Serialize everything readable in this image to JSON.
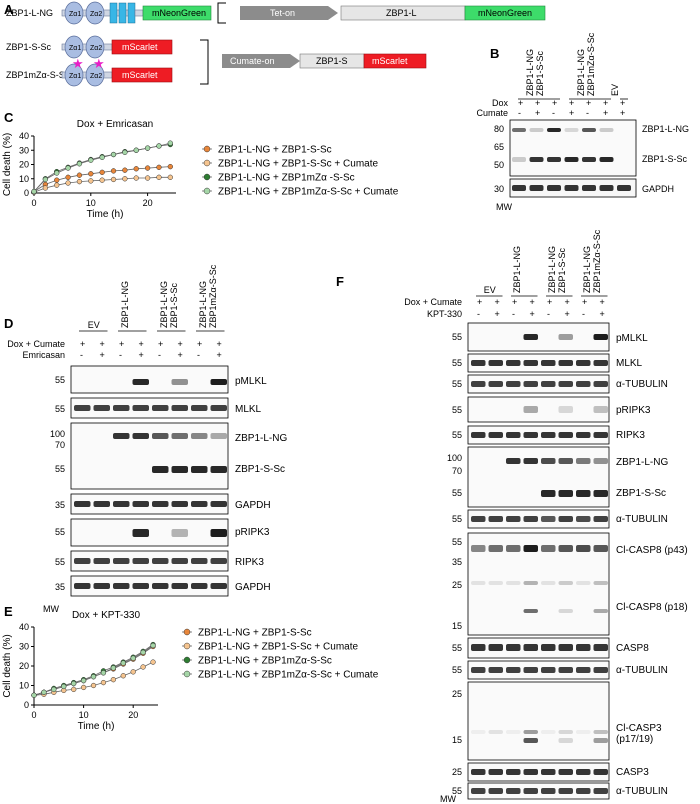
{
  "panels": {
    "A": "A",
    "B": "B",
    "C": "C",
    "D": "D",
    "E": "E",
    "F": "F"
  },
  "panelA": {
    "rows": [
      {
        "name": "ZBP1-L-NG",
        "domains": [
          "Zα1",
          "Zα2"
        ],
        "rhims": [
          "R\nH\n1",
          "R\nH\n2",
          "R\nH\n3"
        ],
        "tag": "mNeonGreen"
      },
      {
        "name": "ZBP1-S-Sc",
        "domains": [
          "Zα1",
          "Zα2"
        ],
        "tag": "mScarlet"
      },
      {
        "name": "ZBP1mZα-S-Sc",
        "domains": [
          "Zα1",
          "Zα2"
        ],
        "tag": "mScarlet"
      }
    ],
    "promoters": [
      "Tet-on",
      "Cumate-on"
    ],
    "construct_L": [
      "ZBP1-L",
      "mNeonGreen"
    ],
    "construct_S": [
      "ZBP1-S",
      "mScarlet"
    ]
  },
  "panelB": {
    "lane_groups": [
      "ZBP1-L-NG\nZBP1-S-Sc",
      "ZBP1-L-NG\nZBP1mZα-S-Sc",
      "EV"
    ],
    "treat_labels": [
      "Dox",
      "Cumate"
    ],
    "dox": [
      "+",
      "+",
      "+",
      "+",
      "+",
      "+",
      "+"
    ],
    "cumate": [
      "-",
      "+",
      "-",
      "+",
      "-",
      "+",
      "+"
    ],
    "mw": [
      "80",
      "65",
      "50",
      "30"
    ],
    "mw_label": "MW",
    "blots": [
      "ZBP1-L-NG",
      "ZBP1-S-Sc",
      "GAPDH"
    ]
  },
  "panelC": {
    "title": "Dox + Emricasan",
    "legend": [
      "ZBP1-L-NG + ZBP1-S-Sc",
      "ZBP1-L-NG + ZBP1-S-Sc + Cumate",
      "ZBP1-L-NG + ZBP1mZα -S-Sc",
      "ZBP1-L-NG + ZBP1mZα-S-Sc + Cumate"
    ]
  },
  "panelD": {
    "lane_groups": [
      "EV",
      "ZBP1-L-NG",
      "ZBP1-L-NG\nZBP1-S-Sc",
      "ZBP1-L-NG\nZBP1mZα-S-Sc"
    ],
    "treat_labels": [
      "Dox + Cumate",
      "Emricasan"
    ],
    "row1": [
      "+",
      "+",
      "+",
      "+",
      "+",
      "+",
      "+",
      "+"
    ],
    "row2": [
      "-",
      "+",
      "-",
      "+",
      "-",
      "+",
      "-",
      "+"
    ],
    "blots": [
      {
        "label": "pMLKL",
        "mw": [
          "55"
        ]
      },
      {
        "label": "MLKL",
        "mw": [
          "55"
        ]
      },
      {
        "label": "ZBP1-L-NG",
        "mw": [
          "100",
          "70"
        ]
      },
      {
        "label": "ZBP1-S-Sc",
        "mw": [
          "55"
        ]
      },
      {
        "label": "GAPDH",
        "mw": [
          "35"
        ]
      },
      {
        "label": "pRIPK3",
        "mw": [
          "55"
        ]
      },
      {
        "label": "RIPK3",
        "mw": [
          "55"
        ]
      },
      {
        "label": "GAPDH",
        "mw": [
          "35"
        ]
      }
    ],
    "mw_label": "MW"
  },
  "panelE": {
    "title": "Dox + KPT-330",
    "legend": [
      "ZBP1-L-NG + ZBP1-S-Sc",
      "ZBP1-L-NG + ZBP1-S-Sc + Cumate",
      "ZBP1-L-NG + ZBP1mZα-S-Sc",
      "ZBP1-L-NG + ZBP1mZα-S-Sc + Cumate"
    ]
  },
  "panelF": {
    "lane_groups": [
      "EV",
      "ZBP1-L-NG",
      "ZBP1-L-NG\nZBP1-S-Sc",
      "ZBP1-L-NG\nZBP1mZα-S-Sc"
    ],
    "treat_labels": [
      "Dox + Cumate",
      "KPT-330"
    ],
    "row1": [
      "+",
      "+",
      "+",
      "+",
      "+",
      "+",
      "+",
      "+"
    ],
    "row2": [
      "-",
      "+",
      "-",
      "+",
      "-",
      "+",
      "-",
      "+"
    ],
    "blots": [
      {
        "label": "pMLKL",
        "mw": [
          "55"
        ]
      },
      {
        "label": "MLKL",
        "mw": [
          "55"
        ]
      },
      {
        "label": "α-TUBULIN",
        "mw": [
          "55"
        ]
      },
      {
        "label": "pRIPK3",
        "mw": [
          "55"
        ]
      },
      {
        "label": "RIPK3",
        "mw": [
          "55"
        ]
      },
      {
        "label": "ZBP1-L-NG",
        "mw": [
          "100",
          "70"
        ]
      },
      {
        "label": "ZBP1-S-Sc",
        "mw": [
          "55"
        ]
      },
      {
        "label": "α-TUBULIN",
        "mw": [
          "55"
        ]
      },
      {
        "label": "Cl-CASP8 (p43)",
        "mw": [
          "55",
          "35",
          "25"
        ]
      },
      {
        "label": "Cl-CASP8 (p18)",
        "mw": [
          "15"
        ]
      },
      {
        "label": "CASP8",
        "mw": [
          "55"
        ]
      },
      {
        "label": "α-TUBULIN",
        "mw": [
          "55"
        ]
      },
      {
        "label": "Cl-CASP3\n(p17/19)",
        "mw": [
          "25",
          "15"
        ]
      },
      {
        "label": "CASP3",
        "mw": [
          "25"
        ]
      },
      {
        "label": "α-TUBULIN",
        "mw": [
          "55"
        ]
      }
    ],
    "mw_label": "MW"
  },
  "chart_data": [
    {
      "type": "line",
      "title": "Dox + Emricasan",
      "xlabel": "Time (h)",
      "ylabel": "Cell death (%)",
      "xlim": [
        0,
        25
      ],
      "ylim": [
        0,
        40
      ],
      "xticks": [
        "0",
        "10",
        "20"
      ],
      "yticks": [
        "0",
        "10",
        "20",
        "30",
        "40"
      ],
      "x": [
        0,
        2,
        4,
        6,
        8,
        10,
        12,
        14,
        16,
        18,
        20,
        22,
        24
      ],
      "series": [
        {
          "name": "ZBP1-L-NG + ZBP1-S-Sc",
          "color": "#e8863a",
          "values": [
            1,
            6,
            9,
            11,
            12.5,
            13.5,
            14.5,
            15.5,
            16,
            17,
            17.5,
            18,
            18.5
          ]
        },
        {
          "name": "ZBP1-L-NG + ZBP1-S-Sc + Cumate",
          "color": "#f5c48f",
          "values": [
            0.5,
            3.5,
            5.5,
            7,
            8,
            8.5,
            9,
            9.5,
            10,
            10.5,
            10.5,
            11,
            11
          ]
        },
        {
          "name": "ZBP1-L-NG + ZBP1mZα -S-Sc",
          "color": "#2e7d32",
          "values": [
            1,
            10,
            15,
            18,
            21,
            23.5,
            25.5,
            27,
            29,
            30,
            31.5,
            33,
            34
          ]
        },
        {
          "name": "ZBP1-L-NG + ZBP1mZα-S-Sc + Cumate",
          "color": "#a5d6a7",
          "values": [
            1,
            9.5,
            14,
            17.5,
            20.5,
            23,
            25,
            27,
            28.5,
            30,
            31.5,
            33,
            35
          ]
        }
      ]
    },
    {
      "type": "line",
      "title": "Dox + KPT-330",
      "xlabel": "Time (h)",
      "ylabel": "Cell death (%)",
      "xlim": [
        0,
        25
      ],
      "ylim": [
        0,
        40
      ],
      "xticks": [
        "0",
        "10",
        "20"
      ],
      "yticks": [
        "0",
        "10",
        "20",
        "30",
        "40"
      ],
      "x": [
        0,
        2,
        4,
        6,
        8,
        10,
        12,
        14,
        16,
        18,
        20,
        22,
        24
      ],
      "series": [
        {
          "name": "ZBP1-L-NG + ZBP1-S-Sc",
          "color": "#e8863a",
          "values": [
            5,
            6.5,
            8,
            9.5,
            11,
            12.5,
            14.5,
            16.5,
            18.5,
            21,
            23.5,
            26.5,
            30
          ]
        },
        {
          "name": "ZBP1-L-NG + ZBP1-S-Sc + Cumate",
          "color": "#f5c48f",
          "values": [
            5,
            5.5,
            6.5,
            7.5,
            8,
            9,
            10,
            11.5,
            13,
            15,
            17,
            19.5,
            22
          ]
        },
        {
          "name": "ZBP1-L-NG + ZBP1mZα-S-Sc",
          "color": "#2e7d32",
          "values": [
            5,
            6.5,
            8.5,
            10,
            11.5,
            13,
            15,
            17.5,
            19.5,
            22,
            24.5,
            27.5,
            31
          ]
        },
        {
          "name": "ZBP1-L-NG + ZBP1mZα-S-Sc + Cumate",
          "color": "#a5d6a7",
          "values": [
            5,
            6.5,
            8,
            9.5,
            11,
            12.5,
            14.5,
            16.5,
            19,
            21.5,
            24,
            27,
            30.5
          ]
        }
      ]
    }
  ]
}
